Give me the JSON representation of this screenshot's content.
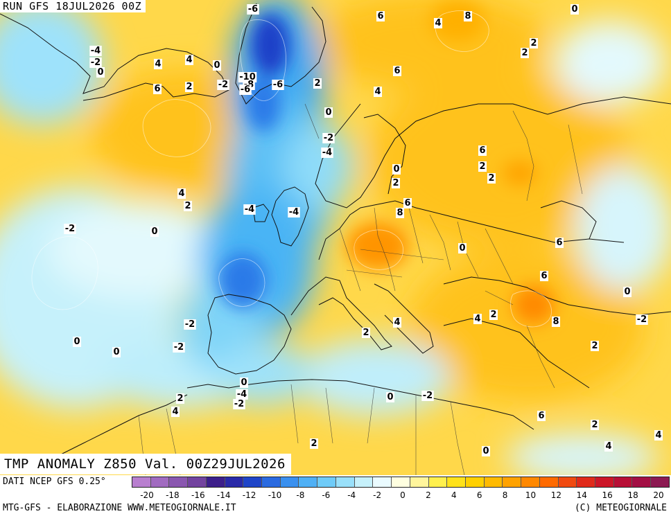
{
  "header": {
    "run_label": "RUN GFS 18JUL2026 00Z",
    "variable_label": "TMP ANOMALY Z850 Val. 00Z29JUL2026"
  },
  "footer": {
    "source": "DATI NCEP GFS 0.25°",
    "credit_left": "MTG-GFS - ELABORAZIONE WWW.METEOGIORNALE.IT",
    "credit_right": "(C) METEOGIORNALE"
  },
  "legend": {
    "colors": [
      "#b87fcf",
      "#a16bc0",
      "#8a57b0",
      "#73439f",
      "#3d1f8a",
      "#2a2aa8",
      "#1f45c8",
      "#2a6ae0",
      "#3a90ef",
      "#4fb0f5",
      "#6fcbf8",
      "#99e0fa",
      "#c6f1fb",
      "#eafbff",
      "#ffffe0",
      "#fff59c",
      "#fff04d",
      "#ffe21a",
      "#ffd000",
      "#ffba00",
      "#ffa200",
      "#ff8800",
      "#ff6a00",
      "#f04a10",
      "#e02a1a",
      "#cc1628",
      "#b80f36",
      "#a30f44",
      "#8c1a52"
    ],
    "tick_labels": [
      "-20",
      "-18",
      "-16",
      "-14",
      "-12",
      "-10",
      "-8",
      "-6",
      "-4",
      "-2",
      "0",
      "2",
      "4",
      "6",
      "8",
      "10",
      "12",
      "14",
      "16",
      "18",
      "20"
    ]
  },
  "map_labels": [
    "-6",
    "6",
    "8",
    "0",
    "-4",
    "-2",
    "0",
    "4",
    "4",
    "0",
    "6",
    "2",
    "4",
    "2",
    "2",
    "6",
    "-2",
    "-10",
    "-8",
    "-6",
    "2",
    "-6",
    "4",
    "0",
    "-2",
    "6",
    "-4",
    "2",
    "2",
    "0",
    "2",
    "4",
    "2",
    "-4",
    "-4",
    "8",
    "6",
    "-2",
    "0",
    "0",
    "6",
    "6",
    "0",
    "-2",
    "2",
    "4",
    "8",
    "-2",
    "0",
    "2",
    "0",
    "4",
    "-2",
    "2",
    "0",
    "-4",
    "-2",
    "0",
    "-2",
    "2",
    "4",
    "6",
    "2",
    "4",
    "2",
    "0",
    "4"
  ]
}
